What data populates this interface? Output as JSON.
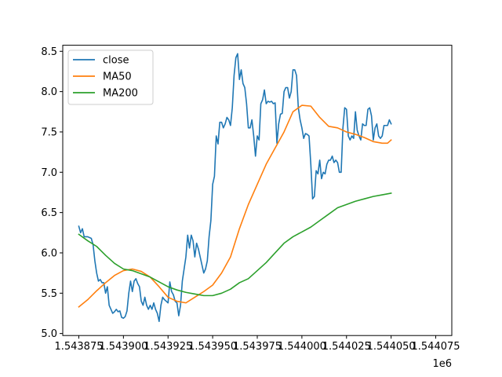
{
  "chart_data": {
    "type": "line",
    "title": "",
    "xlabel": "",
    "ylabel": "",
    "x_offset_label": "1e6",
    "xlim": [
      1.543866,
      1.544084
    ],
    "ylim": [
      4.975,
      8.575
    ],
    "xticks": [
      1.543875,
      1.5439,
      1.543925,
      1.54395,
      1.543975,
      1.544,
      1.544025,
      1.54405,
      1.544075
    ],
    "xtick_labels": [
      "1.543875",
      "1.543900",
      "1.543925",
      "1.543950",
      "1.543975",
      "1.544000",
      "1.544025",
      "1.544050",
      "1.544075"
    ],
    "yticks": [
      5.0,
      5.5,
      6.0,
      6.5,
      7.0,
      7.5,
      8.0,
      8.5
    ],
    "ytick_labels": [
      "5.0",
      "5.5",
      "6.0",
      "6.5",
      "7.0",
      "7.5",
      "8.0",
      "8.5"
    ],
    "grid": false,
    "legend": "top-left",
    "series": [
      {
        "name": "close",
        "color": "#1f77b4",
        "points": [
          [
            1.543875,
            6.33
          ],
          [
            1.543876,
            6.25
          ],
          [
            1.543877,
            6.3
          ],
          [
            1.543878,
            6.2
          ],
          [
            1.54388,
            6.2
          ],
          [
            1.543882,
            6.18
          ],
          [
            1.543883,
            6.1
          ],
          [
            1.543884,
            5.9
          ],
          [
            1.543885,
            5.75
          ],
          [
            1.543886,
            5.65
          ],
          [
            1.543887,
            5.67
          ],
          [
            1.543888,
            5.63
          ],
          [
            1.543889,
            5.63
          ],
          [
            1.54389,
            5.5
          ],
          [
            1.543891,
            5.58
          ],
          [
            1.543892,
            5.35
          ],
          [
            1.543893,
            5.3
          ],
          [
            1.543894,
            5.25
          ],
          [
            1.543895,
            5.27
          ],
          [
            1.543896,
            5.3
          ],
          [
            1.543897,
            5.27
          ],
          [
            1.543898,
            5.28
          ],
          [
            1.543899,
            5.2
          ],
          [
            1.5439,
            5.19
          ],
          [
            1.543901,
            5.21
          ],
          [
            1.543902,
            5.28
          ],
          [
            1.543903,
            5.5
          ],
          [
            1.543904,
            5.65
          ],
          [
            1.543905,
            5.52
          ],
          [
            1.543906,
            5.65
          ],
          [
            1.543907,
            5.68
          ],
          [
            1.543908,
            5.62
          ],
          [
            1.543909,
            5.58
          ],
          [
            1.54391,
            5.4
          ],
          [
            1.543911,
            5.35
          ],
          [
            1.543912,
            5.45
          ],
          [
            1.543913,
            5.35
          ],
          [
            1.543914,
            5.3
          ],
          [
            1.543915,
            5.35
          ],
          [
            1.543916,
            5.3
          ],
          [
            1.543917,
            5.38
          ],
          [
            1.543918,
            5.3
          ],
          [
            1.543919,
            5.25
          ],
          [
            1.54392,
            5.15
          ],
          [
            1.543921,
            5.35
          ],
          [
            1.543922,
            5.45
          ],
          [
            1.543923,
            5.42
          ],
          [
            1.543924,
            5.4
          ],
          [
            1.543925,
            5.38
          ],
          [
            1.543926,
            5.64
          ],
          [
            1.543927,
            5.52
          ],
          [
            1.543928,
            5.48
          ],
          [
            1.543929,
            5.4
          ],
          [
            1.54393,
            5.38
          ],
          [
            1.543931,
            5.22
          ],
          [
            1.543932,
            5.35
          ],
          [
            1.543933,
            5.65
          ],
          [
            1.543934,
            5.8
          ],
          [
            1.543935,
            5.95
          ],
          [
            1.543936,
            6.22
          ],
          [
            1.543937,
            6.06
          ],
          [
            1.543938,
            6.22
          ],
          [
            1.543939,
            6.15
          ],
          [
            1.54394,
            5.95
          ],
          [
            1.543941,
            6.12
          ],
          [
            1.543942,
            6.05
          ],
          [
            1.543943,
            5.95
          ],
          [
            1.543944,
            5.85
          ],
          [
            1.543945,
            5.75
          ],
          [
            1.543946,
            5.8
          ],
          [
            1.543947,
            5.9
          ],
          [
            1.543948,
            6.2
          ],
          [
            1.543949,
            6.4
          ],
          [
            1.54395,
            6.85
          ],
          [
            1.543951,
            6.95
          ],
          [
            1.543952,
            7.45
          ],
          [
            1.543953,
            7.35
          ],
          [
            1.543954,
            7.62
          ],
          [
            1.543955,
            7.62
          ],
          [
            1.543956,
            7.55
          ],
          [
            1.543957,
            7.6
          ],
          [
            1.543958,
            7.68
          ],
          [
            1.543959,
            7.65
          ],
          [
            1.54396,
            7.58
          ],
          [
            1.543961,
            7.8
          ],
          [
            1.543962,
            8.2
          ],
          [
            1.543963,
            8.42
          ],
          [
            1.543964,
            8.47
          ],
          [
            1.543965,
            8.15
          ],
          [
            1.543966,
            8.27
          ],
          [
            1.543967,
            8.1
          ],
          [
            1.543968,
            8.05
          ],
          [
            1.543969,
            7.85
          ],
          [
            1.54397,
            7.55
          ],
          [
            1.543971,
            7.55
          ],
          [
            1.543972,
            7.65
          ],
          [
            1.543973,
            7.45
          ],
          [
            1.543974,
            7.2
          ],
          [
            1.543975,
            7.45
          ],
          [
            1.543976,
            7.4
          ],
          [
            1.543977,
            7.85
          ],
          [
            1.543978,
            7.9
          ],
          [
            1.543979,
            8.02
          ],
          [
            1.54398,
            7.85
          ],
          [
            1.543981,
            7.88
          ],
          [
            1.543982,
            7.87
          ],
          [
            1.543983,
            7.88
          ],
          [
            1.543984,
            7.85
          ],
          [
            1.543985,
            7.86
          ],
          [
            1.543986,
            7.36
          ],
          [
            1.543987,
            7.6
          ],
          [
            1.543988,
            7.72
          ],
          [
            1.543989,
            7.73
          ],
          [
            1.54399,
            8.0
          ],
          [
            1.543991,
            8.05
          ],
          [
            1.543992,
            8.05
          ],
          [
            1.543993,
            7.92
          ],
          [
            1.543994,
            8.0
          ],
          [
            1.543995,
            8.27
          ],
          [
            1.543996,
            8.27
          ],
          [
            1.543997,
            8.2
          ],
          [
            1.543998,
            7.8
          ],
          [
            1.543999,
            7.65
          ],
          [
            1.544,
            7.55
          ],
          [
            1.544001,
            7.42
          ],
          [
            1.544002,
            7.48
          ],
          [
            1.544003,
            7.47
          ],
          [
            1.544004,
            7.45
          ],
          [
            1.544005,
            7.1
          ],
          [
            1.544006,
            6.67
          ],
          [
            1.544007,
            6.7
          ],
          [
            1.544008,
            7.02
          ],
          [
            1.544009,
            6.98
          ],
          [
            1.54401,
            7.15
          ],
          [
            1.544011,
            6.92
          ],
          [
            1.544012,
            7.0
          ],
          [
            1.544013,
            6.98
          ],
          [
            1.544014,
            7.1
          ],
          [
            1.544015,
            7.15
          ],
          [
            1.544016,
            7.15
          ],
          [
            1.544017,
            7.2
          ],
          [
            1.544018,
            7.12
          ],
          [
            1.544019,
            7.15
          ],
          [
            1.54402,
            7.12
          ],
          [
            1.544021,
            7.0
          ],
          [
            1.544022,
            7.0
          ],
          [
            1.544023,
            7.55
          ],
          [
            1.544024,
            7.8
          ],
          [
            1.544025,
            7.78
          ],
          [
            1.544026,
            7.45
          ],
          [
            1.544027,
            7.4
          ],
          [
            1.544028,
            7.45
          ],
          [
            1.544029,
            7.42
          ],
          [
            1.54403,
            7.75
          ],
          [
            1.544031,
            7.52
          ],
          [
            1.544032,
            7.45
          ],
          [
            1.544033,
            7.4
          ],
          [
            1.544034,
            7.6
          ],
          [
            1.544035,
            7.58
          ],
          [
            1.544036,
            7.58
          ],
          [
            1.544037,
            7.78
          ],
          [
            1.544038,
            7.8
          ],
          [
            1.544039,
            7.7
          ],
          [
            1.54404,
            7.4
          ],
          [
            1.544041,
            7.55
          ],
          [
            1.544042,
            7.6
          ],
          [
            1.544043,
            7.45
          ],
          [
            1.544044,
            7.42
          ],
          [
            1.544045,
            7.45
          ],
          [
            1.544046,
            7.58
          ],
          [
            1.544047,
            7.58
          ],
          [
            1.544048,
            7.58
          ],
          [
            1.544049,
            7.65
          ],
          [
            1.54405,
            7.6
          ]
        ]
      },
      {
        "name": "MA50",
        "color": "#ff7f0e",
        "points": [
          [
            1.543875,
            5.33
          ],
          [
            1.54388,
            5.42
          ],
          [
            1.543885,
            5.53
          ],
          [
            1.54389,
            5.63
          ],
          [
            1.543895,
            5.72
          ],
          [
            1.5439,
            5.78
          ],
          [
            1.543905,
            5.8
          ],
          [
            1.54391,
            5.77
          ],
          [
            1.543915,
            5.7
          ],
          [
            1.54392,
            5.58
          ],
          [
            1.543925,
            5.45
          ],
          [
            1.54393,
            5.4
          ],
          [
            1.543935,
            5.38
          ],
          [
            1.54394,
            5.45
          ],
          [
            1.543945,
            5.52
          ],
          [
            1.54395,
            5.6
          ],
          [
            1.543955,
            5.75
          ],
          [
            1.54396,
            5.95
          ],
          [
            1.543965,
            6.3
          ],
          [
            1.54397,
            6.6
          ],
          [
            1.543975,
            6.85
          ],
          [
            1.54398,
            7.1
          ],
          [
            1.543985,
            7.3
          ],
          [
            1.54399,
            7.5
          ],
          [
            1.543995,
            7.75
          ],
          [
            1.544,
            7.83
          ],
          [
            1.544005,
            7.82
          ],
          [
            1.54401,
            7.68
          ],
          [
            1.544015,
            7.57
          ],
          [
            1.54402,
            7.55
          ],
          [
            1.544025,
            7.5
          ],
          [
            1.54403,
            7.47
          ],
          [
            1.544035,
            7.43
          ],
          [
            1.54404,
            7.38
          ],
          [
            1.544045,
            7.36
          ],
          [
            1.544048,
            7.36
          ],
          [
            1.54405,
            7.4
          ]
        ]
      },
      {
        "name": "MA200",
        "color": "#2ca02c",
        "points": [
          [
            1.543875,
            6.23
          ],
          [
            1.54388,
            6.15
          ],
          [
            1.543885,
            6.08
          ],
          [
            1.54389,
            5.97
          ],
          [
            1.543895,
            5.87
          ],
          [
            1.5439,
            5.8
          ],
          [
            1.543905,
            5.78
          ],
          [
            1.54391,
            5.74
          ],
          [
            1.543915,
            5.7
          ],
          [
            1.54392,
            5.64
          ],
          [
            1.543925,
            5.58
          ],
          [
            1.54393,
            5.54
          ],
          [
            1.543935,
            5.51
          ],
          [
            1.54394,
            5.49
          ],
          [
            1.543945,
            5.47
          ],
          [
            1.54395,
            5.47
          ],
          [
            1.543955,
            5.5
          ],
          [
            1.54396,
            5.55
          ],
          [
            1.543965,
            5.63
          ],
          [
            1.54397,
            5.68
          ],
          [
            1.543975,
            5.78
          ],
          [
            1.54398,
            5.88
          ],
          [
            1.543985,
            6.0
          ],
          [
            1.54399,
            6.12
          ],
          [
            1.543995,
            6.2
          ],
          [
            1.544,
            6.26
          ],
          [
            1.544005,
            6.32
          ],
          [
            1.54401,
            6.4
          ],
          [
            1.544015,
            6.48
          ],
          [
            1.54402,
            6.56
          ],
          [
            1.544025,
            6.6
          ],
          [
            1.54403,
            6.64
          ],
          [
            1.544035,
            6.67
          ],
          [
            1.54404,
            6.7
          ],
          [
            1.544045,
            6.72
          ],
          [
            1.54405,
            6.74
          ]
        ]
      }
    ]
  }
}
